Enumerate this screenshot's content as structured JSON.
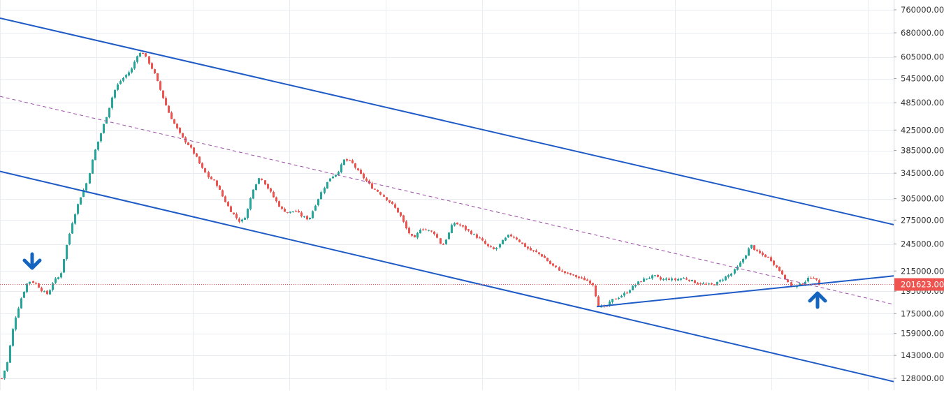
{
  "colors": {
    "background": "#ffffff",
    "grid": "#e9edf2",
    "up_candle": "#26a69a",
    "down_candle": "#ef5350",
    "channel_line": "#1e5bc6",
    "midline": "#9c4fa6",
    "last_price_line": "#ef5350",
    "marker_arrow": "#1565c0",
    "axis_text": "#333333",
    "price_tag_text": "#ffffff"
  },
  "price_axis": {
    "ticks": [
      "760000.00",
      "680000.00",
      "605000.00",
      "545000.00",
      "485000.00",
      "425000.00",
      "385000.00",
      "345000.00",
      "305000.00",
      "275000.00",
      "245000.00",
      "215000.00",
      "195000.00",
      "175000.00",
      "159000.00",
      "143000.00",
      "128000.00"
    ]
  },
  "last_price": {
    "label": "201623.00",
    "value": 201623
  },
  "markers": [
    {
      "name": "down-arrow",
      "direction": "down"
    },
    {
      "name": "up-arrow",
      "direction": "up"
    }
  ],
  "chart_data": {
    "type": "candlestick",
    "scale": "log",
    "ylim": [
      124000,
      820000
    ],
    "grid": true,
    "yticks": [
      760000,
      680000,
      605000,
      545000,
      485000,
      425000,
      385000,
      345000,
      305000,
      275000,
      245000,
      215000,
      195000,
      175000,
      159000,
      143000,
      128000
    ],
    "bars": 290,
    "close_path": [
      [
        0,
        128000
      ],
      [
        8,
        138000
      ],
      [
        18,
        168000
      ],
      [
        28,
        188000
      ],
      [
        38,
        205000
      ],
      [
        48,
        203000
      ],
      [
        58,
        195000
      ],
      [
        66,
        192000
      ],
      [
        74,
        205000
      ],
      [
        84,
        210000
      ],
      [
        92,
        240000
      ],
      [
        102,
        275000
      ],
      [
        112,
        305000
      ],
      [
        122,
        330000
      ],
      [
        132,
        380000
      ],
      [
        142,
        420000
      ],
      [
        152,
        465000
      ],
      [
        160,
        510000
      ],
      [
        168,
        535000
      ],
      [
        176,
        550000
      ],
      [
        186,
        570000
      ],
      [
        194,
        610000
      ],
      [
        202,
        620000
      ],
      [
        210,
        590000
      ],
      [
        218,
        560000
      ],
      [
        228,
        510000
      ],
      [
        238,
        465000
      ],
      [
        248,
        435000
      ],
      [
        258,
        410000
      ],
      [
        268,
        395000
      ],
      [
        278,
        375000
      ],
      [
        286,
        355000
      ],
      [
        296,
        338000
      ],
      [
        306,
        330000
      ],
      [
        316,
        308000
      ],
      [
        326,
        290000
      ],
      [
        334,
        280000
      ],
      [
        342,
        272000
      ],
      [
        350,
        282000
      ],
      [
        360,
        320000
      ],
      [
        370,
        340000
      ],
      [
        380,
        322000
      ],
      [
        390,
        305000
      ],
      [
        400,
        290000
      ],
      [
        410,
        285000
      ],
      [
        420,
        288000
      ],
      [
        430,
        280000
      ],
      [
        440,
        276000
      ],
      [
        450,
        298000
      ],
      [
        460,
        320000
      ],
      [
        470,
        338000
      ],
      [
        480,
        345000
      ],
      [
        490,
        368000
      ],
      [
        500,
        365000
      ],
      [
        510,
        348000
      ],
      [
        520,
        335000
      ],
      [
        530,
        322000
      ],
      [
        540,
        315000
      ],
      [
        550,
        305000
      ],
      [
        560,
        295000
      ],
      [
        570,
        282000
      ],
      [
        580,
        262000
      ],
      [
        590,
        250000
      ],
      [
        600,
        265000
      ],
      [
        610,
        262000
      ],
      [
        620,
        258000
      ],
      [
        630,
        242000
      ],
      [
        638,
        255000
      ],
      [
        646,
        272000
      ],
      [
        656,
        268000
      ],
      [
        666,
        262000
      ],
      [
        676,
        256000
      ],
      [
        686,
        250000
      ],
      [
        696,
        242000
      ],
      [
        706,
        238000
      ],
      [
        716,
        248000
      ],
      [
        726,
        256000
      ],
      [
        736,
        252000
      ],
      [
        746,
        244000
      ],
      [
        756,
        238000
      ],
      [
        766,
        235000
      ],
      [
        776,
        230000
      ],
      [
        786,
        222000
      ],
      [
        796,
        217000
      ],
      [
        806,
        213000
      ],
      [
        816,
        211000
      ],
      [
        826,
        208000
      ],
      [
        836,
        206000
      ],
      [
        846,
        202000
      ],
      [
        854,
        182000
      ],
      [
        864,
        180000
      ],
      [
        874,
        187000
      ],
      [
        884,
        190000
      ],
      [
        894,
        194000
      ],
      [
        904,
        200000
      ],
      [
        914,
        205000
      ],
      [
        924,
        208000
      ],
      [
        934,
        210000
      ],
      [
        944,
        206000
      ],
      [
        954,
        207000
      ],
      [
        964,
        206000
      ],
      [
        974,
        208000
      ],
      [
        984,
        206000
      ],
      [
        994,
        203000
      ],
      [
        1004,
        202000
      ],
      [
        1014,
        201000
      ],
      [
        1024,
        203000
      ],
      [
        1034,
        208000
      ],
      [
        1044,
        212000
      ],
      [
        1054,
        220000
      ],
      [
        1064,
        232000
      ],
      [
        1072,
        244000
      ],
      [
        1080,
        236000
      ],
      [
        1090,
        232000
      ],
      [
        1100,
        228000
      ],
      [
        1110,
        218000
      ],
      [
        1118,
        212000
      ],
      [
        1126,
        202000
      ],
      [
        1134,
        199000
      ],
      [
        1144,
        202000
      ],
      [
        1152,
        206000
      ],
      [
        1160,
        210000
      ],
      [
        1166,
        205000
      ],
      [
        1170,
        201623
      ]
    ],
    "lines": [
      {
        "name": "upper-channel",
        "kind": "trendline",
        "points": [
          [
            0,
            730000
          ],
          [
            1279,
            269000
          ]
        ]
      },
      {
        "name": "lower-channel",
        "kind": "trendline",
        "points": [
          [
            0,
            348000
          ],
          [
            1279,
            126000
          ]
        ]
      },
      {
        "name": "channel-midline",
        "kind": "dashed",
        "points": [
          [
            0,
            500000
          ],
          [
            1279,
            183000
          ]
        ]
      },
      {
        "name": "support-trendline",
        "kind": "trendline",
        "points": [
          [
            854,
            181000
          ],
          [
            1279,
            210000
          ]
        ]
      }
    ]
  }
}
